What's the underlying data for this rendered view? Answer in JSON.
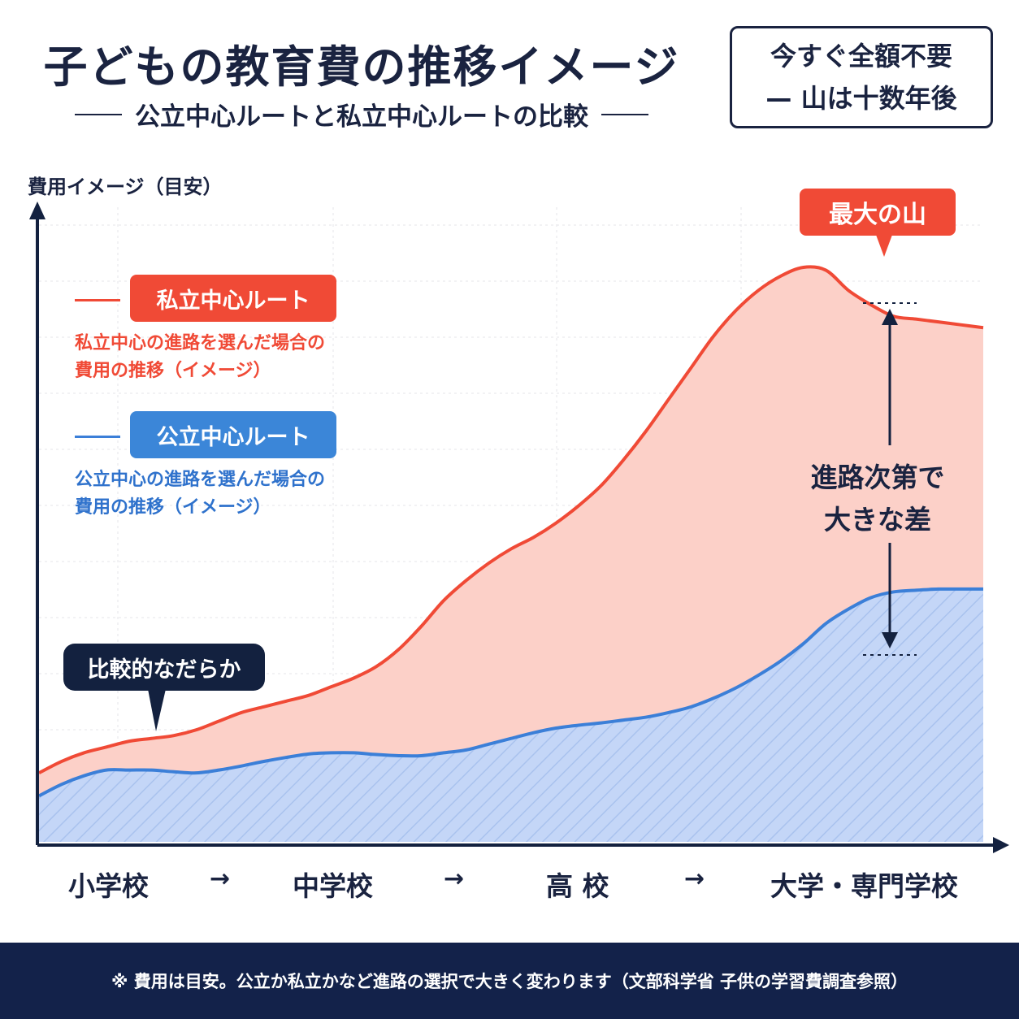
{
  "header": {
    "title": "子どもの教育費の推移イメージ",
    "subtitle": "公立中心ルートと私立中心ルートの比較"
  },
  "notice": {
    "line1": "今すぐ全額不要",
    "line2": "— 山は十数年後"
  },
  "legend": {
    "private": {
      "label": "私立中心ルート",
      "desc_line1": "私立中心の進路を選んだ場合の",
      "desc_line2": "費用の推移（イメージ）"
    },
    "public": {
      "label": "公立中心ルート",
      "desc_line1": "公立中心の進路を選んだ場合の",
      "desc_line2": "費用の推移（イメージ）"
    }
  },
  "annotations": {
    "peak": "最大の山",
    "gentle": "比較的なだらか",
    "gap_line1": "進路次第で",
    "gap_line2": "大きな差"
  },
  "stage_arrow": "→",
  "footer": "※ 費用は目安。公立か私立かなど進路の選択で大きく変わります（文部科学省 子供の学習費調査参照）",
  "colors": {
    "private": "#f04a36",
    "private_fill": "#fcd0c8",
    "public": "#3b7fd8",
    "public_fill": "#c4d6f7",
    "axis": "#13213f"
  },
  "chart_data": {
    "type": "area",
    "ylabel": "費用イメージ（目安）",
    "xlabel": "",
    "categories": [
      "小学校",
      "中学校",
      "高 校",
      "大学・専門学校"
    ],
    "x": [
      0,
      0.1,
      0.2,
      0.3,
      0.4,
      0.5,
      0.6,
      0.7,
      0.8,
      0.9,
      1.0,
      1.1,
      1.2,
      1.3,
      1.4,
      1.5,
      1.6,
      1.7,
      1.8,
      1.9,
      2.0,
      2.1,
      2.2,
      2.3,
      2.4,
      2.5,
      2.6,
      2.7,
      2.8,
      2.9,
      3.0,
      3.1,
      3.2,
      3.3,
      3.4,
      3.5,
      3.6,
      3.7,
      3.8,
      3.9,
      4.0,
      4.1,
      4.2
    ],
    "ylim": [
      0,
      100
    ],
    "xlim": [
      0,
      4.2
    ],
    "grid": true,
    "series": [
      {
        "name": "私立中心ルート",
        "values": [
          12,
          14,
          15.5,
          16.5,
          17.5,
          18,
          18.5,
          19.5,
          21,
          22.5,
          23.5,
          24.5,
          25.5,
          27,
          28.5,
          30.5,
          33.5,
          37.5,
          42,
          45.5,
          48.5,
          51,
          53,
          55.5,
          58.5,
          62,
          66.5,
          71.5,
          77,
          82.5,
          88,
          92.5,
          96,
          98.5,
          100,
          99.5,
          96,
          93.5,
          91.5,
          91,
          90.5,
          90,
          89.5
        ]
      },
      {
        "name": "公立中心ルート",
        "values": [
          8,
          10,
          11.5,
          12.5,
          12.5,
          12.5,
          12.2,
          12,
          12.5,
          13.2,
          14,
          14.7,
          15.3,
          15.5,
          15.5,
          15.2,
          15,
          15,
          15.5,
          16,
          17,
          18,
          19,
          19.8,
          20.3,
          20.7,
          21.2,
          21.7,
          22.5,
          23.5,
          25,
          26.8,
          29,
          31.5,
          34.5,
          38,
          40.5,
          42.5,
          43.5,
          43.8,
          44,
          44,
          44
        ]
      }
    ]
  }
}
